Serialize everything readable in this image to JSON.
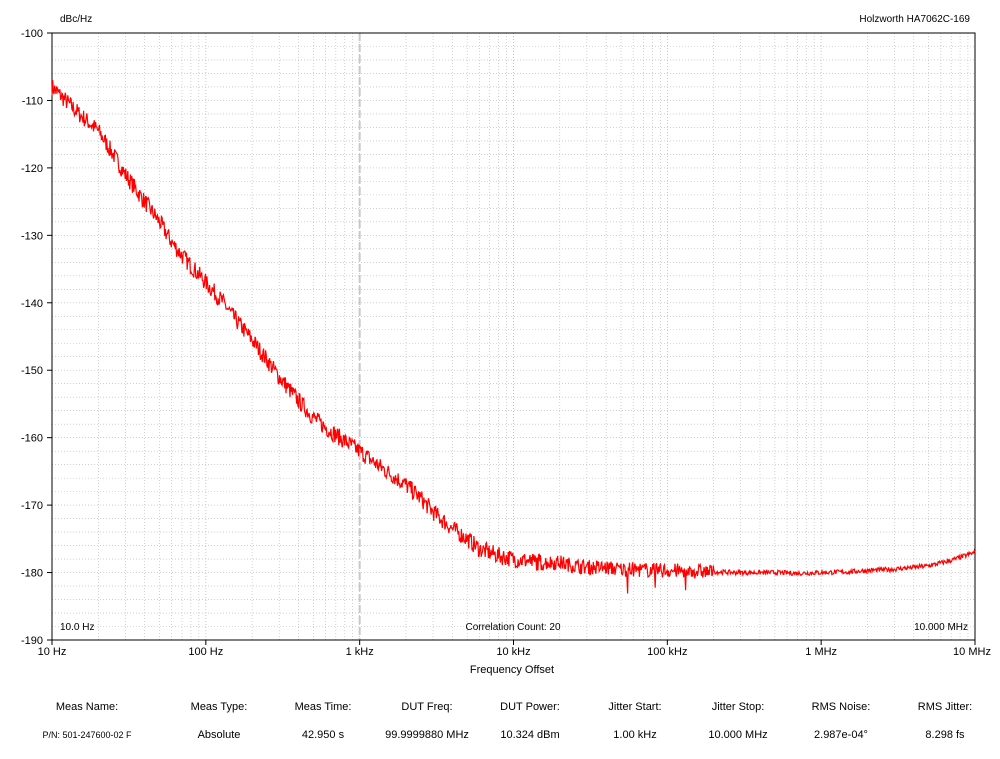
{
  "chart_data": {
    "type": "line",
    "title": "",
    "ylabel": "dBc/Hz",
    "xlabel": "Frequency Offset",
    "instrument": "Holzworth HA7062C-169",
    "x_scale": "log",
    "xlim": [
      10,
      10000000
    ],
    "ylim": [
      -190,
      -100
    ],
    "grid": true,
    "x_ticks": [
      {
        "value": 10,
        "label": "10 Hz"
      },
      {
        "value": 100,
        "label": "100 Hz"
      },
      {
        "value": 1000,
        "label": "1 kHz"
      },
      {
        "value": 10000,
        "label": "10 kHz"
      },
      {
        "value": 100000,
        "label": "100 kHz"
      },
      {
        "value": 1000000,
        "label": "1 MHz"
      },
      {
        "value": 10000000,
        "label": "10 MHz"
      }
    ],
    "y_ticks": [
      -100,
      -110,
      -120,
      -130,
      -140,
      -150,
      -160,
      -170,
      -180,
      -190
    ],
    "marker_line_x": 1000,
    "annotations": {
      "start": "10.0 Hz",
      "center": "Correlation Count: 20",
      "stop": "10.000 MHz"
    },
    "series": [
      {
        "color": "#ff0000",
        "x": [
          10,
          15,
          20,
          25,
          30,
          40,
          50,
          60,
          70,
          80,
          100,
          130,
          150,
          200,
          250,
          300,
          400,
          500,
          600,
          800,
          1000,
          1300,
          1500,
          2000,
          2500,
          3000,
          4000,
          5000,
          6000,
          8000,
          10000,
          15000,
          20000,
          25000,
          30000,
          40000,
          50000,
          70000,
          100000,
          150000,
          200000,
          300000,
          500000,
          700000,
          1000000,
          1500000,
          2000000,
          3000000,
          5000000,
          7000000,
          10000000
        ],
        "y": [
          -108,
          -112,
          -114.5,
          -118,
          -121,
          -125,
          -128,
          -131,
          -133,
          -134.5,
          -137,
          -140,
          -142,
          -145.5,
          -148.5,
          -151,
          -154.5,
          -157,
          -158.5,
          -160.5,
          -162,
          -164,
          -165,
          -167,
          -169,
          -171,
          -173.5,
          -175,
          -176.5,
          -177.5,
          -178,
          -178.5,
          -178.5,
          -179,
          -179.2,
          -179.3,
          -179.5,
          -179.6,
          -179.7,
          -179.8,
          -179.9,
          -180,
          -180,
          -180.1,
          -180,
          -179.9,
          -179.7,
          -179.5,
          -179,
          -178.2,
          -177
        ]
      }
    ]
  },
  "summary": {
    "columns": [
      {
        "header": "Meas Name:",
        "value": "P/N: 501-247600-02 F"
      },
      {
        "header": "Meas Type:",
        "value": "Absolute"
      },
      {
        "header": "Meas Time:",
        "value": "42.950 s"
      },
      {
        "header": "DUT Freq:",
        "value": "99.9999880 MHz"
      },
      {
        "header": "DUT Power:",
        "value": "10.324 dBm"
      },
      {
        "header": "Jitter Start:",
        "value": "1.00 kHz"
      },
      {
        "header": "Jitter Stop:",
        "value": "10.000 MHz"
      },
      {
        "header": "RMS Noise:",
        "value": "2.987e-04°"
      },
      {
        "header": "RMS Jitter:",
        "value": "8.298 fs"
      }
    ]
  }
}
